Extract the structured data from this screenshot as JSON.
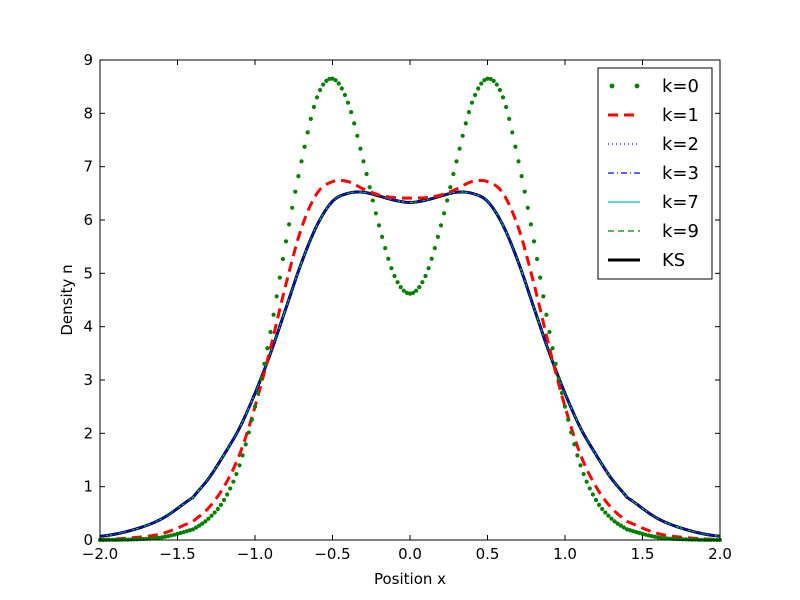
{
  "chart_data": {
    "type": "line",
    "title": "",
    "xlabel": "Position x",
    "ylabel": "Density n",
    "xlim": [
      -2.0,
      2.0
    ],
    "ylim": [
      0,
      9
    ],
    "xticks": [
      -2.0,
      -1.5,
      -1.0,
      -0.5,
      0.0,
      0.5,
      1.0,
      1.5,
      2.0
    ],
    "xtick_labels": [
      "−2.0",
      "−1.5",
      "−1.0",
      "−0.5",
      "0.0",
      "0.5",
      "1.0",
      "1.5",
      "2.0"
    ],
    "yticks": [
      0,
      1,
      2,
      3,
      4,
      5,
      6,
      7,
      8,
      9
    ],
    "ytick_labels": [
      "0",
      "1",
      "2",
      "3",
      "4",
      "5",
      "6",
      "7",
      "8",
      "9"
    ],
    "grid": false,
    "legend_position": "top-right",
    "x": [
      -2.0,
      -1.8,
      -1.6,
      -1.4,
      -1.3,
      -1.2,
      -1.1,
      -1.0,
      -0.9,
      -0.8,
      -0.7,
      -0.6,
      -0.5,
      -0.4,
      -0.3,
      -0.2,
      -0.1,
      0.0,
      0.1,
      0.2,
      0.3,
      0.4,
      0.5,
      0.6,
      0.7,
      0.8,
      0.9,
      1.0,
      1.1,
      1.2,
      1.3,
      1.4,
      1.6,
      1.8,
      2.0
    ],
    "series": [
      {
        "name": "k=0",
        "style": "dotted-markers",
        "color": "#007f00",
        "values": [
          0.0,
          0.01,
          0.05,
          0.2,
          0.4,
          0.75,
          1.4,
          2.5,
          3.9,
          5.6,
          7.1,
          8.3,
          8.65,
          8.2,
          7.1,
          5.9,
          4.95,
          4.62,
          4.95,
          5.9,
          7.1,
          8.2,
          8.65,
          8.3,
          7.1,
          5.6,
          3.9,
          2.5,
          1.4,
          0.75,
          0.4,
          0.2,
          0.05,
          0.01,
          0.0
        ]
      },
      {
        "name": "k=1",
        "style": "dashed",
        "color": "#ff0000",
        "values": [
          0.01,
          0.04,
          0.12,
          0.35,
          0.6,
          1.0,
          1.6,
          2.5,
          3.6,
          4.8,
          5.85,
          6.5,
          6.72,
          6.72,
          6.58,
          6.47,
          6.42,
          6.41,
          6.42,
          6.47,
          6.58,
          6.72,
          6.72,
          6.5,
          5.85,
          4.8,
          3.6,
          2.5,
          1.6,
          1.0,
          0.6,
          0.35,
          0.12,
          0.04,
          0.01
        ]
      },
      {
        "name": "k=2",
        "style": "dotted",
        "color": "#0000ff",
        "values": [
          0.07,
          0.18,
          0.4,
          0.8,
          1.15,
          1.6,
          2.1,
          2.75,
          3.5,
          4.35,
          5.2,
          5.9,
          6.35,
          6.5,
          6.52,
          6.45,
          6.37,
          6.33,
          6.37,
          6.45,
          6.52,
          6.5,
          6.35,
          5.9,
          5.2,
          4.35,
          3.5,
          2.75,
          2.1,
          1.6,
          1.15,
          0.8,
          0.4,
          0.18,
          0.07
        ]
      },
      {
        "name": "k=3",
        "style": "dashdot",
        "color": "#0000ff",
        "values": [
          0.07,
          0.18,
          0.4,
          0.8,
          1.15,
          1.6,
          2.1,
          2.75,
          3.5,
          4.35,
          5.2,
          5.9,
          6.35,
          6.5,
          6.52,
          6.45,
          6.37,
          6.33,
          6.37,
          6.45,
          6.52,
          6.5,
          6.35,
          5.9,
          5.2,
          4.35,
          3.5,
          2.75,
          2.1,
          1.6,
          1.15,
          0.8,
          0.4,
          0.18,
          0.07
        ]
      },
      {
        "name": "k=7",
        "style": "solid-thin",
        "color": "#00bfbf",
        "values": [
          0.07,
          0.18,
          0.4,
          0.8,
          1.15,
          1.6,
          2.1,
          2.75,
          3.5,
          4.35,
          5.2,
          5.9,
          6.35,
          6.5,
          6.52,
          6.45,
          6.37,
          6.33,
          6.37,
          6.45,
          6.52,
          6.5,
          6.35,
          5.9,
          5.2,
          4.35,
          3.5,
          2.75,
          2.1,
          1.6,
          1.15,
          0.8,
          0.4,
          0.18,
          0.07
        ]
      },
      {
        "name": "k=9",
        "style": "dashed-thin",
        "color": "#007f00",
        "values": [
          0.07,
          0.18,
          0.4,
          0.8,
          1.15,
          1.6,
          2.1,
          2.75,
          3.5,
          4.35,
          5.2,
          5.9,
          6.35,
          6.5,
          6.52,
          6.45,
          6.37,
          6.33,
          6.37,
          6.45,
          6.52,
          6.5,
          6.35,
          5.9,
          5.2,
          4.35,
          3.5,
          2.75,
          2.1,
          1.6,
          1.15,
          0.8,
          0.4,
          0.18,
          0.07
        ]
      },
      {
        "name": "KS",
        "style": "solid-thick",
        "color": "#000000",
        "values": [
          0.07,
          0.18,
          0.4,
          0.8,
          1.15,
          1.6,
          2.1,
          2.75,
          3.5,
          4.35,
          5.2,
          5.9,
          6.35,
          6.5,
          6.52,
          6.45,
          6.37,
          6.33,
          6.37,
          6.45,
          6.52,
          6.5,
          6.35,
          5.9,
          5.2,
          4.35,
          3.5,
          2.75,
          2.1,
          1.6,
          1.15,
          0.8,
          0.4,
          0.18,
          0.07
        ]
      }
    ]
  }
}
